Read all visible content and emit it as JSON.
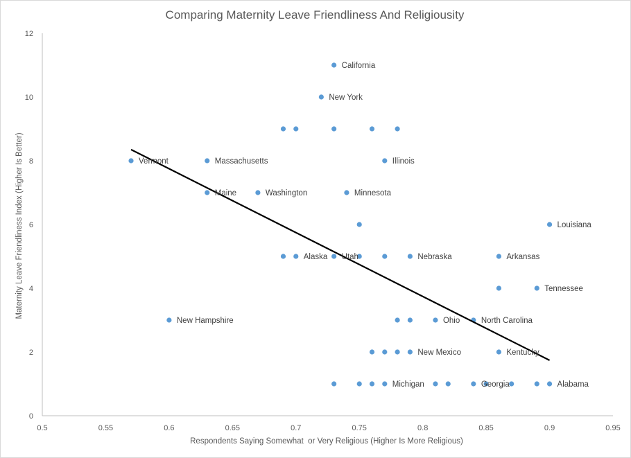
{
  "chart_data": {
    "type": "scatter",
    "title": "Comparing Maternity Leave Friendliness And Religiousity",
    "xlabel": "Respondents Saying Somewhat  or Very Religious (Higher Is More Religious)",
    "ylabel": "Maternity Leave Friendliness Index (Higher Is Better)",
    "xlim": [
      0.5,
      0.95
    ],
    "ylim": [
      0,
      12
    ],
    "x_ticks": [
      "0.5",
      "0.55",
      "0.6",
      "0.65",
      "0.7",
      "0.75",
      "0.8",
      "0.85",
      "0.9",
      "0.95"
    ],
    "y_ticks": [
      "0",
      "2",
      "4",
      "6",
      "8",
      "10",
      "12"
    ],
    "grid": false,
    "legend": "none",
    "marker_color": "#5b9bd5",
    "trendline": {
      "type": "linear",
      "color": "#000000",
      "x": [
        0.57,
        0.9
      ],
      "y": [
        8.35,
        1.74
      ]
    },
    "points": [
      {
        "x": 0.73,
        "y": 11,
        "label": "California"
      },
      {
        "x": 0.72,
        "y": 10,
        "label": "New York"
      },
      {
        "x": 0.69,
        "y": 9,
        "label": ""
      },
      {
        "x": 0.7,
        "y": 9,
        "label": ""
      },
      {
        "x": 0.73,
        "y": 9,
        "label": ""
      },
      {
        "x": 0.76,
        "y": 9,
        "label": ""
      },
      {
        "x": 0.78,
        "y": 9,
        "label": ""
      },
      {
        "x": 0.57,
        "y": 8,
        "label": "Vermont"
      },
      {
        "x": 0.63,
        "y": 8,
        "label": "Massachusetts"
      },
      {
        "x": 0.77,
        "y": 8,
        "label": "Illinois"
      },
      {
        "x": 0.63,
        "y": 7,
        "label": "Maine"
      },
      {
        "x": 0.67,
        "y": 7,
        "label": "Washington"
      },
      {
        "x": 0.74,
        "y": 7,
        "label": "Minnesota"
      },
      {
        "x": 0.75,
        "y": 6,
        "label": ""
      },
      {
        "x": 0.9,
        "y": 6,
        "label": "Louisiana"
      },
      {
        "x": 0.69,
        "y": 5,
        "label": ""
      },
      {
        "x": 0.7,
        "y": 5,
        "label": "Alaska"
      },
      {
        "x": 0.73,
        "y": 5,
        "label": "Utah"
      },
      {
        "x": 0.75,
        "y": 5,
        "label": ""
      },
      {
        "x": 0.77,
        "y": 5,
        "label": ""
      },
      {
        "x": 0.79,
        "y": 5,
        "label": "Nebraska"
      },
      {
        "x": 0.86,
        "y": 5,
        "label": "Arkansas"
      },
      {
        "x": 0.86,
        "y": 4,
        "label": ""
      },
      {
        "x": 0.89,
        "y": 4,
        "label": "Tennessee"
      },
      {
        "x": 0.6,
        "y": 3,
        "label": "New Hampshire"
      },
      {
        "x": 0.78,
        "y": 3,
        "label": ""
      },
      {
        "x": 0.79,
        "y": 3,
        "label": ""
      },
      {
        "x": 0.81,
        "y": 3,
        "label": "Ohio"
      },
      {
        "x": 0.84,
        "y": 3,
        "label": "North Carolina"
      },
      {
        "x": 0.76,
        "y": 2,
        "label": ""
      },
      {
        "x": 0.77,
        "y": 2,
        "label": ""
      },
      {
        "x": 0.78,
        "y": 2,
        "label": ""
      },
      {
        "x": 0.79,
        "y": 2,
        "label": "New Mexico"
      },
      {
        "x": 0.86,
        "y": 2,
        "label": "Kentucky"
      },
      {
        "x": 0.73,
        "y": 1,
        "label": ""
      },
      {
        "x": 0.75,
        "y": 1,
        "label": ""
      },
      {
        "x": 0.76,
        "y": 1,
        "label": ""
      },
      {
        "x": 0.77,
        "y": 1,
        "label": "Michigan"
      },
      {
        "x": 0.81,
        "y": 1,
        "label": ""
      },
      {
        "x": 0.82,
        "y": 1,
        "label": ""
      },
      {
        "x": 0.84,
        "y": 1,
        "label": "Georgia"
      },
      {
        "x": 0.85,
        "y": 1,
        "label": ""
      },
      {
        "x": 0.87,
        "y": 1,
        "label": ""
      },
      {
        "x": 0.89,
        "y": 1,
        "label": ""
      },
      {
        "x": 0.9,
        "y": 1,
        "label": "Alabama"
      }
    ]
  }
}
